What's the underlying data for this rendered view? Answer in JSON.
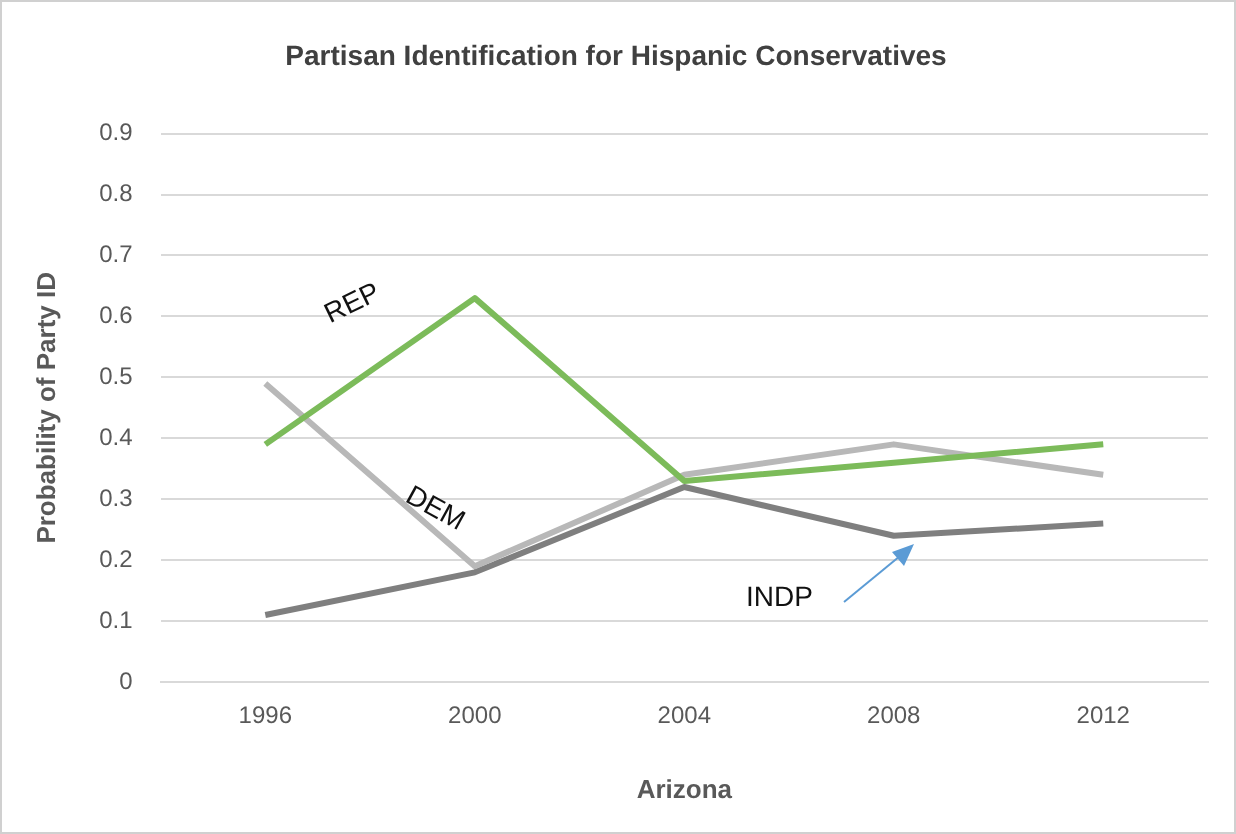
{
  "chart_data": {
    "type": "line",
    "title": "Partisan Identification for Hispanic Conservatives",
    "xlabel": "Arizona",
    "ylabel": "Probability of Party ID",
    "categories": [
      "1996",
      "2000",
      "2004",
      "2008",
      "2012"
    ],
    "series": [
      {
        "name": "REP",
        "color": "#7cbb5a",
        "values": [
          0.39,
          0.63,
          0.33,
          0.36,
          0.39
        ]
      },
      {
        "name": "DEM",
        "color": "#b8b8b8",
        "values": [
          0.49,
          0.19,
          0.34,
          0.39,
          0.34
        ]
      },
      {
        "name": "INDP",
        "color": "#7f7f7f",
        "values": [
          0.11,
          0.18,
          0.32,
          0.24,
          0.26
        ]
      }
    ],
    "ylim": [
      0,
      0.9
    ],
    "yticks": [
      0,
      0.1,
      0.2,
      0.3,
      0.4,
      0.5,
      0.6,
      0.7,
      0.8,
      0.9
    ],
    "grid": "y",
    "legend": false,
    "marker": "none",
    "line_style": "solid"
  }
}
